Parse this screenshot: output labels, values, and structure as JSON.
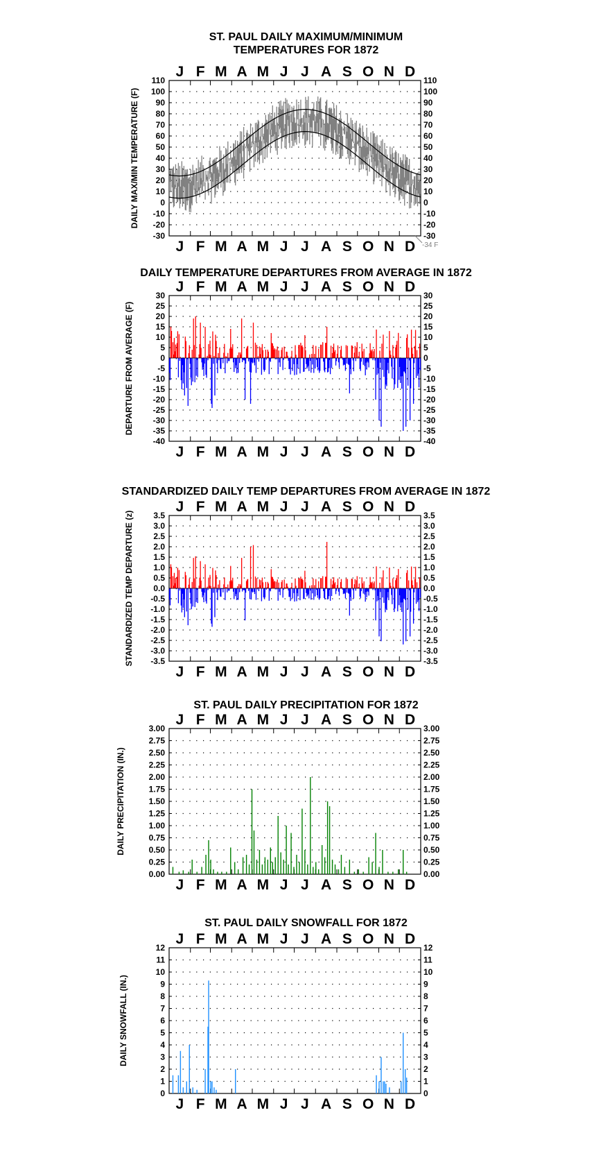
{
  "months": [
    "J",
    "F",
    "M",
    "A",
    "M",
    "J",
    "J",
    "A",
    "S",
    "O",
    "N",
    "D"
  ],
  "footnote": "-34 F",
  "chart_data": [
    {
      "id": "temp",
      "type": "line",
      "title_lines": [
        "ST. PAUL DAILY MAXIMUM/MINIMUM",
        "TEMPERATURES FOR 1872"
      ],
      "ylabel": "DAILY MAX/MIN TEMPERATURE (F)",
      "ylim": [
        -30,
        110
      ],
      "yticks": [
        -30,
        -20,
        -10,
        0,
        10,
        20,
        30,
        40,
        50,
        60,
        70,
        80,
        90,
        100,
        110
      ],
      "grid": true,
      "note": "daily max/min temperature range shaded gray; smooth black lines are normal max and normal min",
      "series": [
        {
          "values_by_month_start": [
            26,
            22,
            30,
            45,
            60,
            75,
            84,
            82,
            74,
            58,
            40,
            30
          ]
        },
        {
          "values_by_month_start": [
            6,
            4,
            14,
            30,
            42,
            55,
            63,
            62,
            52,
            38,
            22,
            10
          ]
        }
      ],
      "observed_extremes": {
        "max": 95,
        "min": -34
      }
    },
    {
      "id": "dep",
      "type": "bar",
      "title": "DAILY TEMPERATURE DEPARTURES FROM AVERAGE IN 1872",
      "ylabel": "DEPARTURE FROM AVERAGE (F)",
      "ylim": [
        -40,
        30
      ],
      "yticks": [
        -40,
        -35,
        -30,
        -25,
        -20,
        -15,
        -10,
        -5,
        0,
        5,
        10,
        15,
        20,
        25,
        30
      ],
      "grid": true,
      "colors": {
        "positive": "#ff0000",
        "negative": "#0000ff"
      },
      "notable_values": {
        "max": 20,
        "min": -35
      }
    },
    {
      "id": "std",
      "type": "bar",
      "title": "STANDARDIZED DAILY TEMP DEPARTURES FROM AVERAGE IN 1872",
      "ylabel": "STANDARDIZED TEMP DEPARTURE (z)",
      "ylim": [
        -3.5,
        3.5
      ],
      "yticks": [
        -3.5,
        -3.0,
        -2.5,
        -2.0,
        -1.5,
        -1.0,
        -0.5,
        0.0,
        0.5,
        1.0,
        1.5,
        2.0,
        2.5,
        3.0,
        3.5
      ],
      "grid": true,
      "colors": {
        "positive": "#ff0000",
        "negative": "#0000ff"
      },
      "notable_values": {
        "max": 2.2,
        "min": -2.8
      }
    },
    {
      "id": "precip",
      "type": "bar",
      "title": "ST. PAUL DAILY PRECIPITATION FOR 1872",
      "ylabel": "DAILY PRECIPITATION (IN.)",
      "ylim": [
        0,
        3
      ],
      "yticks": [
        0,
        0.25,
        0.5,
        0.75,
        1,
        1.25,
        1.5,
        1.75,
        2,
        2.25,
        2.5,
        2.75,
        3
      ],
      "grid": true,
      "color": "#008000",
      "bars": [
        {
          "day": 5,
          "value": 0.15
        },
        {
          "day": 14,
          "value": 0.05
        },
        {
          "day": 20,
          "value": 0.08
        },
        {
          "day": 28,
          "value": 0.05
        },
        {
          "day": 33,
          "value": 0.3
        },
        {
          "day": 40,
          "value": 0.05
        },
        {
          "day": 47,
          "value": 0.15
        },
        {
          "day": 53,
          "value": 0.4
        },
        {
          "day": 57,
          "value": 0.7
        },
        {
          "day": 60,
          "value": 0.3
        },
        {
          "day": 64,
          "value": 0.1
        },
        {
          "day": 70,
          "value": 0.05
        },
        {
          "day": 76,
          "value": 0.05
        },
        {
          "day": 83,
          "value": 0.05
        },
        {
          "day": 89,
          "value": 0.55
        },
        {
          "day": 95,
          "value": 0.25
        },
        {
          "day": 100,
          "value": 0.1
        },
        {
          "day": 107,
          "value": 0.35
        },
        {
          "day": 112,
          "value": 0.4
        },
        {
          "day": 116,
          "value": 0.2
        },
        {
          "day": 120,
          "value": 1.75
        },
        {
          "day": 123,
          "value": 0.9
        },
        {
          "day": 127,
          "value": 0.3
        },
        {
          "day": 131,
          "value": 0.5
        },
        {
          "day": 135,
          "value": 0.2
        },
        {
          "day": 139,
          "value": 0.35
        },
        {
          "day": 143,
          "value": 0.3
        },
        {
          "day": 147,
          "value": 0.55
        },
        {
          "day": 150,
          "value": 0.25
        },
        {
          "day": 154,
          "value": 0.35
        },
        {
          "day": 158,
          "value": 1.2
        },
        {
          "day": 162,
          "value": 0.45
        },
        {
          "day": 166,
          "value": 0.3
        },
        {
          "day": 170,
          "value": 1.0
        },
        {
          "day": 173,
          "value": 0.2
        },
        {
          "day": 177,
          "value": 0.85
        },
        {
          "day": 181,
          "value": 0.15
        },
        {
          "day": 185,
          "value": 0.4
        },
        {
          "day": 189,
          "value": 0.25
        },
        {
          "day": 193,
          "value": 1.35
        },
        {
          "day": 197,
          "value": 0.5
        },
        {
          "day": 201,
          "value": 0.2
        },
        {
          "day": 205,
          "value": 2.0
        },
        {
          "day": 209,
          "value": 0.15
        },
        {
          "day": 213,
          "value": 0.25
        },
        {
          "day": 217,
          "value": 0.1
        },
        {
          "day": 222,
          "value": 0.6
        },
        {
          "day": 226,
          "value": 0.35
        },
        {
          "day": 230,
          "value": 1.5
        },
        {
          "day": 233,
          "value": 1.4
        },
        {
          "day": 237,
          "value": 0.3
        },
        {
          "day": 241,
          "value": 0.2
        },
        {
          "day": 246,
          "value": 0.1
        },
        {
          "day": 250,
          "value": 0.4
        },
        {
          "day": 255,
          "value": 0.15
        },
        {
          "day": 262,
          "value": 0.3
        },
        {
          "day": 269,
          "value": 0.05
        },
        {
          "day": 275,
          "value": 0.1
        },
        {
          "day": 282,
          "value": 0.05
        },
        {
          "day": 290,
          "value": 0.35
        },
        {
          "day": 295,
          "value": 0.25
        },
        {
          "day": 300,
          "value": 0.85
        },
        {
          "day": 305,
          "value": 0.15
        },
        {
          "day": 310,
          "value": 0.5
        },
        {
          "day": 318,
          "value": 0.05
        },
        {
          "day": 325,
          "value": 0.05
        },
        {
          "day": 333,
          "value": 0.1
        },
        {
          "day": 340,
          "value": 0.5
        },
        {
          "day": 345,
          "value": 0.05
        }
      ]
    },
    {
      "id": "snow",
      "type": "bar",
      "title": "ST. PAUL DAILY SNOWFALL FOR 1872",
      "ylabel": "DAILY SNOWFALL (IN.)",
      "ylim": [
        0,
        12
      ],
      "yticks": [
        0,
        1,
        2,
        3,
        4,
        5,
        6,
        7,
        8,
        9,
        10,
        11,
        12
      ],
      "grid": true,
      "color": "#1e90ff",
      "bars": [
        {
          "day": 5,
          "value": 1.5
        },
        {
          "day": 13,
          "value": 1.5
        },
        {
          "day": 16,
          "value": 3.5
        },
        {
          "day": 20,
          "value": 0.5
        },
        {
          "day": 25,
          "value": 1.0
        },
        {
          "day": 29,
          "value": 4.0
        },
        {
          "day": 34,
          "value": 0.5
        },
        {
          "day": 40,
          "value": 0.3
        },
        {
          "day": 52,
          "value": 2.0
        },
        {
          "day": 56,
          "value": 5.5
        },
        {
          "day": 57,
          "value": 9.3
        },
        {
          "day": 60,
          "value": 1.0
        },
        {
          "day": 62,
          "value": 1.0
        },
        {
          "day": 65,
          "value": 0.5
        },
        {
          "day": 68,
          "value": 0.3
        },
        {
          "day": 96,
          "value": 2.0
        },
        {
          "day": 301,
          "value": 1.5
        },
        {
          "day": 305,
          "value": 1.0
        },
        {
          "day": 308,
          "value": 3.0
        },
        {
          "day": 311,
          "value": 1.0
        },
        {
          "day": 313,
          "value": 1.0
        },
        {
          "day": 315,
          "value": 0.8
        },
        {
          "day": 320,
          "value": 0.5
        },
        {
          "day": 337,
          "value": 1.0
        },
        {
          "day": 340,
          "value": 5.0
        },
        {
          "day": 343,
          "value": 2.0
        },
        {
          "day": 345,
          "value": 1.3
        }
      ]
    }
  ]
}
